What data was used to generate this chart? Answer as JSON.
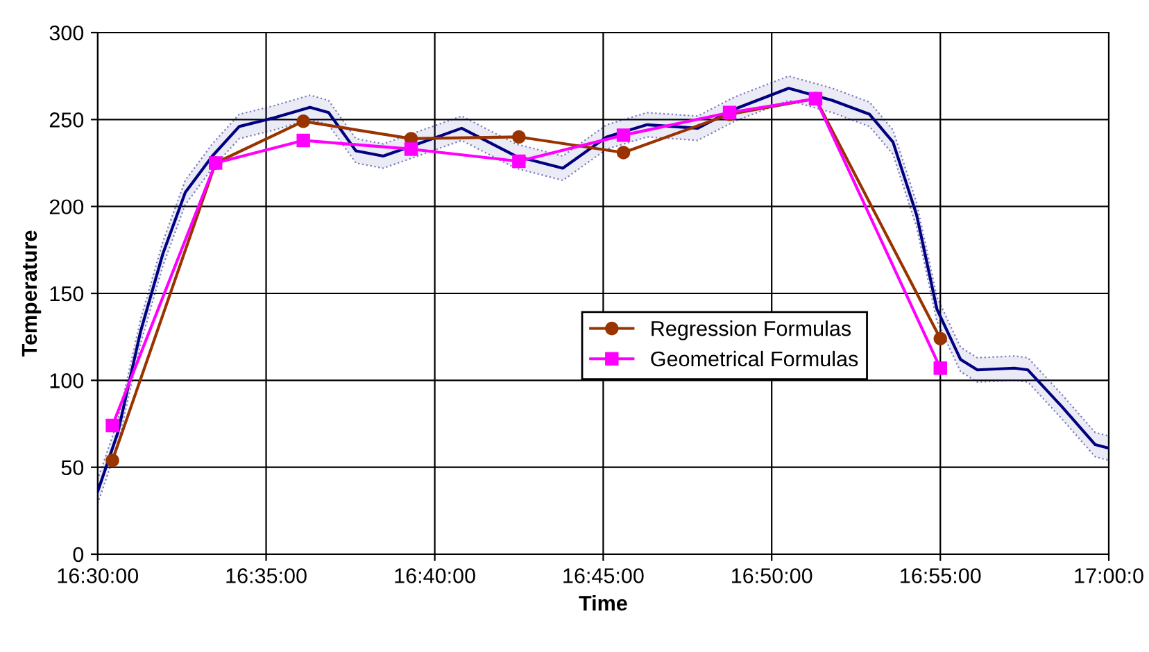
{
  "chart_data": {
    "type": "line",
    "xlabel": "Time",
    "ylabel": "Temperature",
    "xlim": [
      16.5,
      17
    ],
    "ylim": [
      0,
      300
    ],
    "xticks": [
      {
        "value": 16.5,
        "label": "16:30:00"
      },
      {
        "value": 16.5833,
        "label": "16:35:00"
      },
      {
        "value": 16.6667,
        "label": "16:40:00"
      },
      {
        "value": 16.75,
        "label": "16:45:00"
      },
      {
        "value": 16.8333,
        "label": "16:50:00"
      },
      {
        "value": 16.9167,
        "label": "16:55:00"
      },
      {
        "value": 17,
        "label": "17:00:0"
      }
    ],
    "yticks": [
      0,
      50,
      100,
      150,
      200,
      250,
      300
    ],
    "grid": true,
    "legend": "center",
    "series": [
      {
        "color": "#000080",
        "marker": "none",
        "x": [
          16.5,
          16.51,
          16.5212,
          16.5323,
          16.5433,
          16.5567,
          16.57,
          16.5873,
          16.605,
          16.6142,
          16.6277,
          16.6412,
          16.6583,
          16.68,
          16.7067,
          16.73,
          16.7517,
          16.7717,
          16.7967,
          16.815,
          16.8417,
          16.8633,
          16.8817,
          16.8933,
          16.905,
          16.915,
          16.9267,
          16.935,
          16.9533,
          16.96,
          16.9767,
          16.9933,
          17
        ],
        "values": [
          36,
          70,
          128,
          173,
          208,
          229,
          246,
          251,
          257,
          254,
          232,
          229,
          236,
          245,
          229,
          222,
          240,
          247,
          245,
          256,
          268,
          261,
          253,
          237,
          195,
          141,
          112,
          106,
          107,
          106,
          85,
          63,
          61
        ],
        "lower": [
          29,
          63,
          121,
          166,
          201,
          222,
          239,
          244,
          250,
          247,
          225,
          222,
          229,
          238,
          222,
          215,
          233,
          240,
          238,
          249,
          261,
          254,
          246,
          230,
          188,
          134,
          105,
          99,
          100,
          99,
          78,
          56,
          54
        ],
        "upper": [
          43,
          77,
          135,
          180,
          215,
          236,
          253,
          258,
          264,
          261,
          239,
          236,
          243,
          252,
          236,
          229,
          247,
          254,
          252,
          263,
          275,
          268,
          260,
          244,
          202,
          148,
          119,
          113,
          114,
          113,
          92,
          70,
          68
        ]
      },
      {
        "name": "Regression Formulas",
        "color": "#993300",
        "marker": "circle",
        "x": [
          16.5073,
          16.5583,
          16.6017,
          16.655,
          16.7083,
          16.76,
          16.8125,
          16.855,
          16.9167
        ],
        "values": [
          54,
          225,
          249,
          239,
          240,
          231,
          253,
          262,
          124
        ]
      },
      {
        "name": "Geometrical Formulas",
        "color": "#ff00ff",
        "marker": "square",
        "x": [
          16.5073,
          16.5583,
          16.6017,
          16.655,
          16.7083,
          16.76,
          16.8125,
          16.855,
          16.9167
        ],
        "values": [
          74,
          225,
          238,
          233,
          226,
          241,
          254,
          262,
          107
        ]
      }
    ]
  }
}
